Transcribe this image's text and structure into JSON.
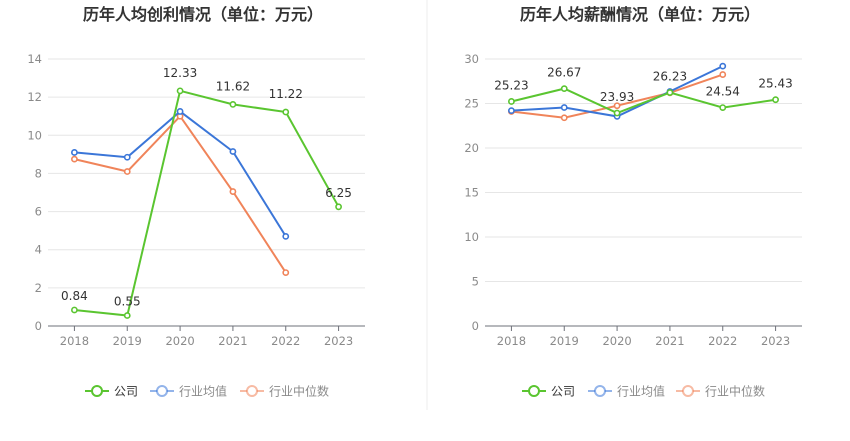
{
  "chart_data": [
    {
      "type": "line",
      "title": "历年人均创利情况（单位：万元）",
      "xlabel": "",
      "ylabel": "",
      "categories": [
        "2018",
        "2019",
        "2020",
        "2021",
        "2022",
        "2023"
      ],
      "ylim": [
        0,
        14
      ],
      "yticks": [
        0,
        2,
        4,
        6,
        8,
        10,
        12,
        14
      ],
      "series": [
        {
          "name": "公司",
          "color": "#5ac530",
          "values": [
            0.84,
            0.55,
            12.33,
            11.62,
            11.22,
            6.25
          ],
          "labels": [
            "0.84",
            "0.55",
            "12.33",
            "11.62",
            "11.22",
            "6.25"
          ]
        },
        {
          "name": "行业均值",
          "color": "#3b76d8",
          "values": [
            9.1,
            8.85,
            11.25,
            9.15,
            4.7,
            null
          ]
        },
        {
          "name": "行业中位数",
          "color": "#f0845a",
          "values": [
            8.75,
            8.1,
            11.0,
            7.05,
            2.8,
            null
          ]
        }
      ],
      "grid": true,
      "legend": "bottom"
    },
    {
      "type": "line",
      "title": "历年人均薪酬情况（单位：万元）",
      "xlabel": "",
      "ylabel": "",
      "categories": [
        "2018",
        "2019",
        "2020",
        "2021",
        "2022",
        "2023"
      ],
      "ylim": [
        0,
        30
      ],
      "yticks": [
        0,
        5,
        10,
        15,
        20,
        25,
        30
      ],
      "series": [
        {
          "name": "公司",
          "color": "#5ac530",
          "values": [
            25.23,
            26.67,
            23.93,
            26.23,
            24.54,
            25.43
          ],
          "labels": [
            "25.23",
            "26.67",
            "23.93",
            "26.23",
            "24.54",
            "25.43"
          ]
        },
        {
          "name": "行业均值",
          "color": "#3b76d8",
          "values": [
            24.2,
            24.55,
            23.55,
            26.35,
            29.2,
            null
          ]
        },
        {
          "name": "行业中位数",
          "color": "#f0845a",
          "values": [
            24.1,
            23.4,
            24.75,
            26.2,
            28.25,
            null
          ]
        }
      ],
      "grid": true,
      "legend": "bottom"
    }
  ]
}
